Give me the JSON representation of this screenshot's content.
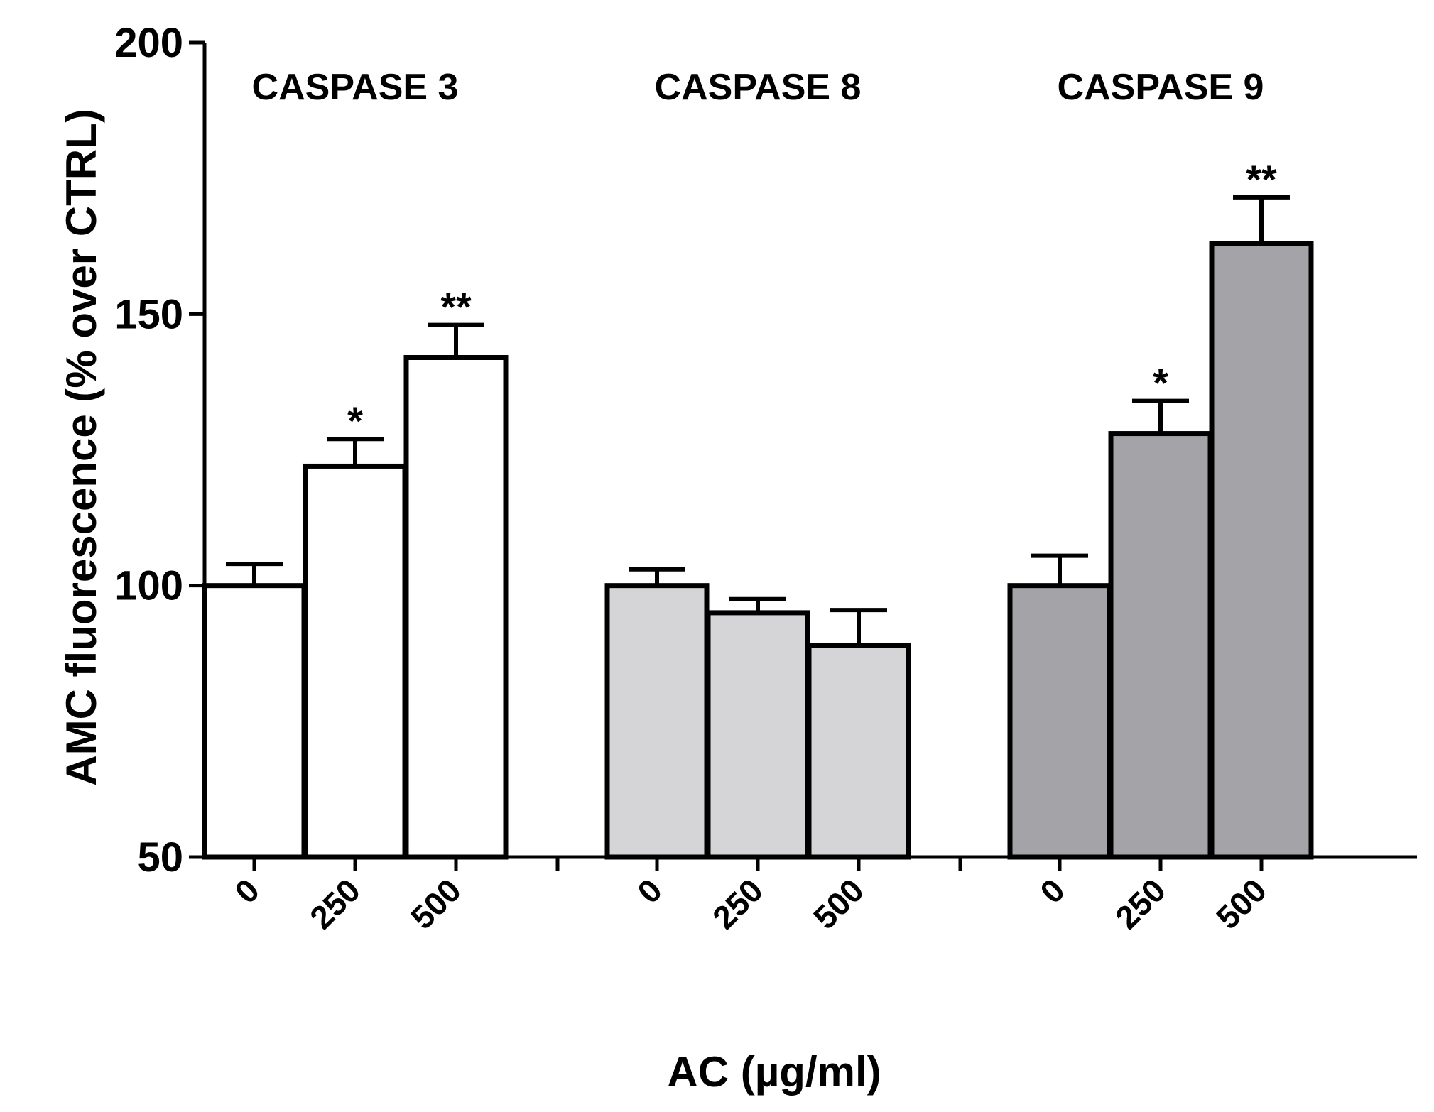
{
  "chart_data": {
    "type": "bar",
    "xlabel": "AC (µg/ml)",
    "ylabel": "AMC fluorescence (% over CTRL)",
    "ylim": [
      50,
      200
    ],
    "yticks": [
      "200",
      "150",
      "100",
      "50"
    ],
    "grid": false,
    "legend": "none",
    "groups": [
      {
        "name": "CASPASE 3",
        "color": "#ffffff",
        "bars": [
          {
            "category": "0",
            "value": 100,
            "error": 4,
            "sig": ""
          },
          {
            "category": "250",
            "value": 122,
            "error": 5,
            "sig": "*"
          },
          {
            "category": "500",
            "value": 142,
            "error": 6,
            "sig": "**"
          }
        ]
      },
      {
        "name": "CASPASE 8",
        "color": "#d5d5d7",
        "bars": [
          {
            "category": "0",
            "value": 100,
            "error": 3,
            "sig": ""
          },
          {
            "category": "250",
            "value": 95,
            "error": 2.5,
            "sig": ""
          },
          {
            "category": "500",
            "value": 89,
            "error": 6.5,
            "sig": ""
          }
        ]
      },
      {
        "name": "CASPASE 9",
        "color": "#a3a3a8",
        "bars": [
          {
            "category": "0",
            "value": 100,
            "error": 5.5,
            "sig": ""
          },
          {
            "category": "250",
            "value": 128,
            "error": 6,
            "sig": "*"
          },
          {
            "category": "500",
            "value": 163,
            "error": 8.5,
            "sig": "**"
          }
        ]
      }
    ]
  }
}
